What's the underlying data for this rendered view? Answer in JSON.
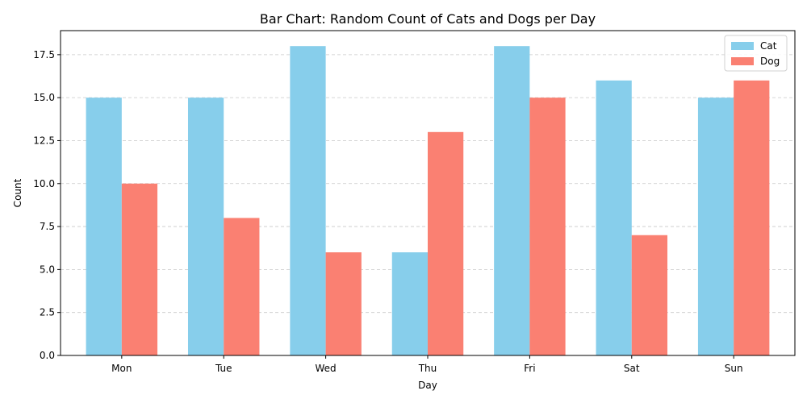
{
  "chart_data": {
    "type": "bar",
    "title": "Bar Chart: Random Count of Cats and Dogs per Day",
    "xlabel": "Day",
    "ylabel": "Count",
    "categories": [
      "Mon",
      "Tue",
      "Wed",
      "Thu",
      "Fri",
      "Sat",
      "Sun"
    ],
    "series": [
      {
        "name": "Cat",
        "color": "#87ceeb",
        "values": [
          15,
          15,
          18,
          6,
          18,
          16,
          15
        ]
      },
      {
        "name": "Dog",
        "color": "#fa8072",
        "values": [
          10,
          8,
          6,
          13,
          15,
          7,
          16
        ]
      }
    ],
    "ylim": [
      0,
      18.9
    ],
    "yticks": [
      "0.0",
      "2.5",
      "5.0",
      "7.5",
      "10.0",
      "12.5",
      "15.0",
      "17.5"
    ],
    "grid": {
      "y": true,
      "x": false,
      "style": "dashed",
      "color": "#c8c8c8"
    },
    "legend": {
      "position": "top-right"
    }
  }
}
